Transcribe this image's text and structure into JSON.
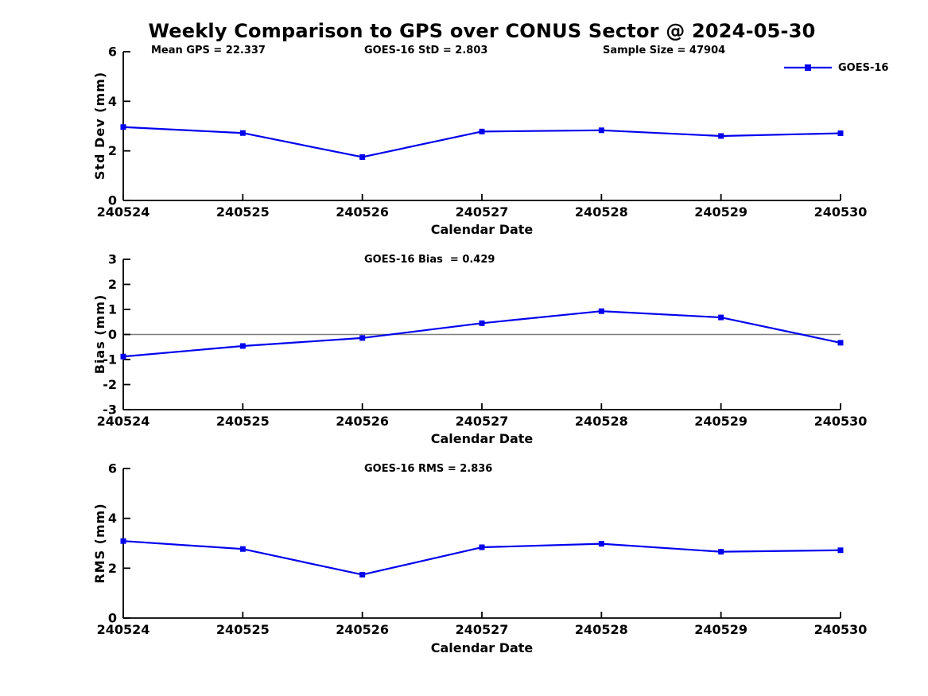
{
  "page": {
    "title": "Weekly Comparison to GPS over CONUS Sector @ 2024-05-30",
    "background": "#ffffff"
  },
  "colors": {
    "series": "#0000ee",
    "axis": "#000000",
    "text": "#000000",
    "zero_line": "#7f7f7f"
  },
  "legend": {
    "label": "GOES-16",
    "marker": "filled-square",
    "position": "top-right-of-first-panel"
  },
  "annotations": {
    "mean_gps": "Mean GPS = 22.337",
    "std": "GOES-16 StD = 2.803",
    "sample_size": "Sample Size = 47904",
    "bias": "GOES-16 Bias  = 0.429",
    "rms": "GOES-16 RMS = 2.836"
  },
  "chart_data": [
    {
      "type": "line",
      "panel": "std_dev",
      "xlabel": "Calendar Date",
      "ylabel": "Std Dev (mm)",
      "categories": [
        "240524",
        "240525",
        "240526",
        "240527",
        "240528",
        "240529",
        "240530"
      ],
      "series": [
        {
          "name": "GOES-16",
          "values": [
            2.96,
            2.72,
            1.75,
            2.78,
            2.83,
            2.6,
            2.71
          ]
        }
      ],
      "ylim": [
        0,
        6
      ],
      "yticks": [
        0,
        2,
        4,
        6
      ],
      "zero_line": false,
      "grid": false,
      "legend_visible": true
    },
    {
      "type": "line",
      "panel": "bias",
      "xlabel": "Calendar Date",
      "ylabel": "Bias (mm)",
      "categories": [
        "240524",
        "240525",
        "240526",
        "240527",
        "240528",
        "240529",
        "240530"
      ],
      "series": [
        {
          "name": "GOES-16",
          "values": [
            -0.88,
            -0.46,
            -0.14,
            0.45,
            0.93,
            0.68,
            -0.33
          ]
        }
      ],
      "ylim": [
        -3,
        3
      ],
      "yticks": [
        -3,
        -2,
        -1,
        0,
        1,
        2,
        3
      ],
      "zero_line": true,
      "grid": false,
      "legend_visible": false
    },
    {
      "type": "line",
      "panel": "rms",
      "xlabel": "Calendar Date",
      "ylabel": "RMS (mm)",
      "categories": [
        "240524",
        "240525",
        "240526",
        "240527",
        "240528",
        "240529",
        "240530"
      ],
      "series": [
        {
          "name": "GOES-16",
          "values": [
            3.09,
            2.77,
            1.74,
            2.84,
            2.98,
            2.66,
            2.72
          ]
        }
      ],
      "ylim": [
        0,
        6
      ],
      "yticks": [
        0,
        2,
        4,
        6
      ],
      "zero_line": false,
      "grid": false,
      "legend_visible": false
    }
  ]
}
